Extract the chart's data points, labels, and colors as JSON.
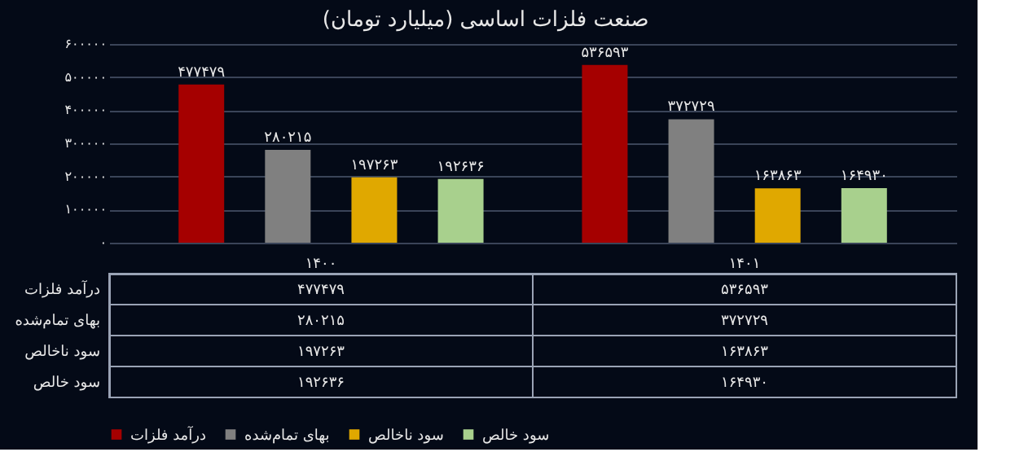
{
  "chart_data": {
    "type": "bar",
    "title": "صنعت فلزات اساسی (میلیارد تومان)",
    "categories": [
      "۱۴۰۰",
      "۱۴۰۱"
    ],
    "series": [
      {
        "name": "درآمد فلزات",
        "color": "#a50000",
        "values": [
          477479,
          536593
        ],
        "value_labels": [
          "۴۷۷۴۷۹",
          "۵۳۶۵۹۳"
        ]
      },
      {
        "name": "بهای تمام‌شده",
        "color": "#808080",
        "values": [
          280215,
          372729
        ],
        "value_labels": [
          "۲۸۰۲۱۵",
          "۳۷۲۷۲۹"
        ]
      },
      {
        "name": "سود ناخالص",
        "color": "#e0a800",
        "values": [
          197263,
          163863
        ],
        "value_labels": [
          "۱۹۷۲۶۳",
          "۱۶۳۸۶۳"
        ]
      },
      {
        "name": "سود خالص",
        "color": "#a8d08d",
        "values": [
          192636,
          164930
        ],
        "value_labels": [
          "۱۹۲۶۳۶",
          "۱۶۴۹۳۰"
        ]
      }
    ],
    "ylim": [
      0,
      600000
    ],
    "yticks": [
      {
        "value": 0,
        "label": "۰"
      },
      {
        "value": 100000,
        "label": "۱۰۰۰۰۰"
      },
      {
        "value": 200000,
        "label": "۲۰۰۰۰۰"
      },
      {
        "value": 300000,
        "label": "۳۰۰۰۰۰"
      },
      {
        "value": 400000,
        "label": "۴۰۰۰۰۰"
      },
      {
        "value": 500000,
        "label": "۵۰۰۰۰۰"
      },
      {
        "value": 600000,
        "label": "۶۰۰۰۰۰"
      }
    ],
    "grid": "y",
    "legend": "bottom"
  }
}
